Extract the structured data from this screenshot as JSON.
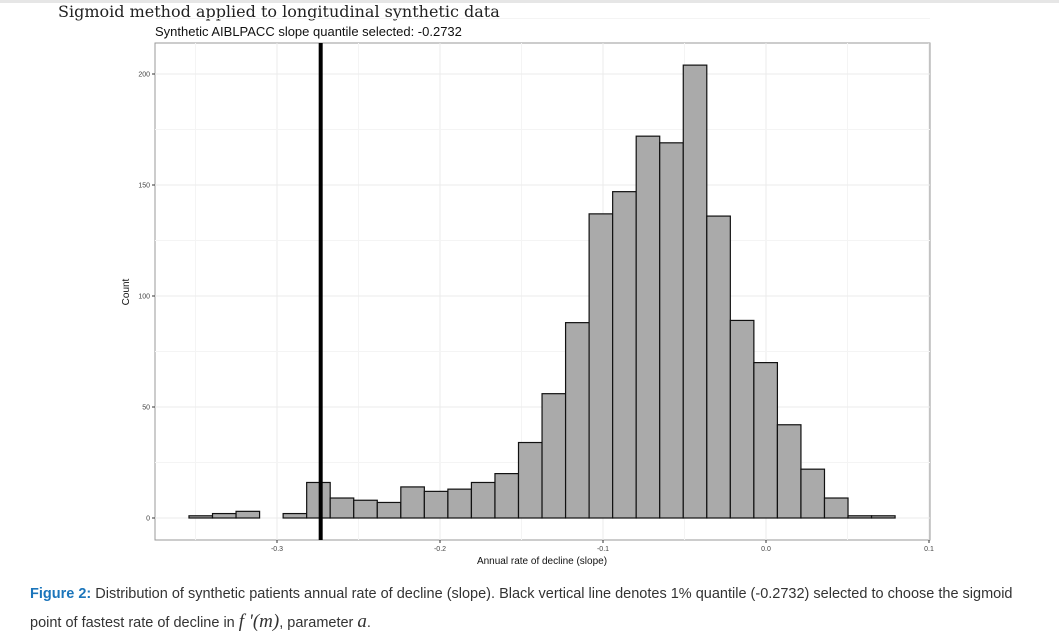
{
  "page_title": "Sigmoid method applied to longitudinal synthetic data",
  "caption": {
    "label": "Figure 2:",
    "text": " Distribution of synthetic patients annual rate of decline (slope). Black vertical line denotes 1% quantile (-0.2732) selected to choose the sigmoid point of fastest rate of decline in ",
    "math1": "f '(m)",
    "text2": ", parameter ",
    "math2": "a",
    "text3": "."
  },
  "chart_data": {
    "type": "bar",
    "title": "Synthetic AIBLPACC slope quantile selected: -0.2732",
    "xlabel": "Annual rate of decline (slope)",
    "ylabel": "Count",
    "xlim": [
      -0.36,
      0.1
    ],
    "ylim": [
      -8,
      210
    ],
    "xticks": [
      -0.3,
      -0.2,
      -0.1,
      0.0,
      0.1
    ],
    "xtick_labels": [
      "-0.3",
      "-0.2",
      "-0.1",
      "0.0",
      "0.1"
    ],
    "yticks": [
      0,
      50,
      100,
      150,
      200
    ],
    "ytick_labels": [
      "0",
      "50",
      "100",
      "150",
      "200"
    ],
    "bin_start": -0.354,
    "bin_width": 0.01444,
    "values": [
      1,
      2,
      3,
      0,
      2,
      16,
      9,
      8,
      7,
      14,
      12,
      13,
      16,
      20,
      34,
      56,
      88,
      137,
      147,
      172,
      169,
      204,
      136,
      89,
      70,
      42,
      22,
      9,
      1,
      1
    ],
    "vline": -0.2732,
    "grid": true,
    "bar_color": "#aaaaaa"
  }
}
